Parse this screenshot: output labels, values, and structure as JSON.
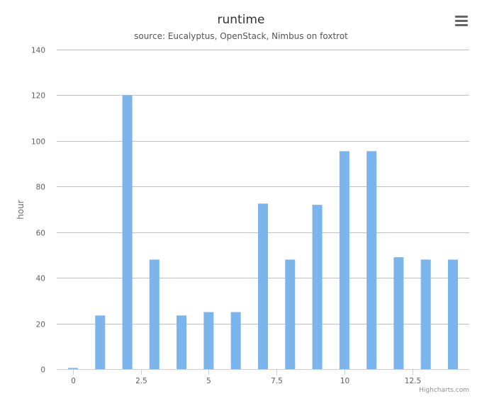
{
  "chart_data": {
    "type": "bar",
    "title": "runtime",
    "subtitle": "source: Eucalyptus, OpenStack, Nimbus on foxtrot",
    "xlabel": "",
    "ylabel": "hour",
    "x": [
      0,
      1,
      2,
      3,
      4,
      5,
      6,
      7,
      8,
      9,
      10,
      11,
      12,
      13,
      14
    ],
    "values": [
      0.5,
      23.5,
      120,
      48,
      23.5,
      25,
      25,
      72.5,
      48,
      72,
      95.5,
      95.5,
      49,
      48,
      48
    ],
    "xlim": [
      -0.6,
      14.6
    ],
    "ylim": [
      0,
      140
    ],
    "x_ticks": [
      0,
      2.5,
      5,
      7.5,
      10,
      12.5
    ],
    "x_tick_labels": [
      "0",
      "2.5",
      "5",
      "7.5",
      "10",
      "12.5"
    ],
    "y_ticks": [
      0,
      20,
      40,
      60,
      80,
      100,
      120,
      140
    ],
    "y_tick_labels": [
      "0",
      "20",
      "40",
      "60",
      "80",
      "100",
      "120",
      "140"
    ],
    "grid": true,
    "legend": "none",
    "bar_color": "#7cb5ec",
    "credits": "Highcharts.com"
  },
  "menu": {
    "icon": "hamburger-menu-icon"
  }
}
